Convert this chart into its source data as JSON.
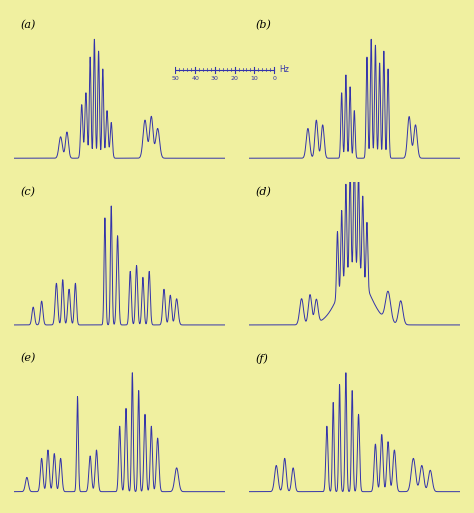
{
  "background_color": "#f0f0a0",
  "line_color": "#3333aa",
  "line_width": 0.7,
  "labels": [
    "(a)",
    "(b)",
    "(c)",
    "(d)",
    "(e)",
    "(f)"
  ],
  "label_fontsize": 8,
  "scale_ticks": [
    50,
    40,
    30,
    20,
    10,
    0
  ]
}
